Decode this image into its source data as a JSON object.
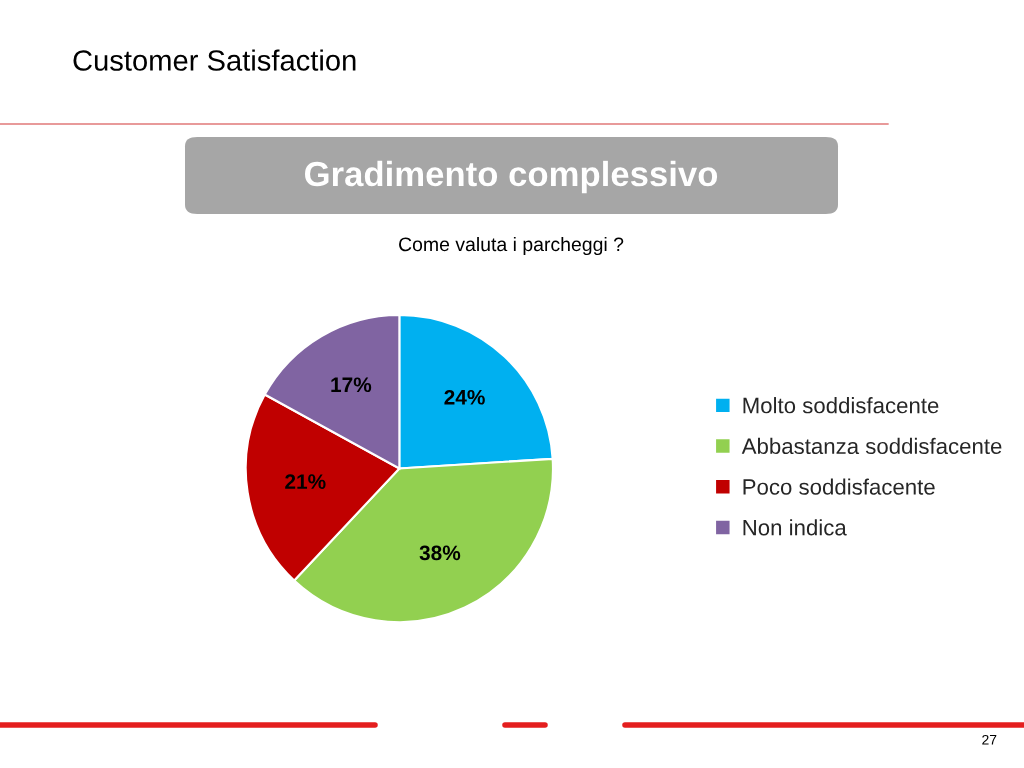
{
  "chart_data": {
    "type": "pie",
    "title": "Customer Satisfaction",
    "subtitle": "Gradimento complessivo",
    "annotations": [
      "Come valuta i parcheggi ?",
      "27"
    ],
    "categories": [
      "Molto soddisfacente",
      "Abbastanza soddisfacente",
      "Poco soddisfacente",
      "Non indica"
    ],
    "values": [
      24,
      38,
      21,
      17
    ],
    "value_labels": [
      "24%",
      "38%",
      "21%",
      "17%"
    ],
    "colors": [
      "#00b0f0",
      "#92d050",
      "#c00000",
      "#8064a2"
    ],
    "legend": "right"
  }
}
